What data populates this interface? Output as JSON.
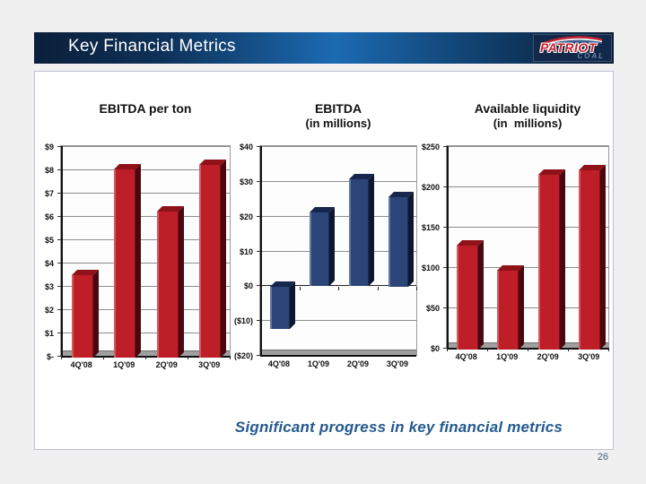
{
  "header": {
    "title": "Key Financial Metrics",
    "logo": {
      "patriot": "PATRIOT",
      "coal": "COAL"
    }
  },
  "tagline": "Significant progress in key financial metrics",
  "page_number": "26",
  "colors": {
    "header_navy": "#0B1F3A",
    "header_blue": "#1C6AB2",
    "red_bar": "#BE1E28",
    "blue_bar": "#2B4579",
    "tagline_blue": "#24598F"
  },
  "chart_data": [
    {
      "type": "bar",
      "title": "EBITDA per ton",
      "subtitle": "",
      "categories": [
        "4Q'08",
        "1Q'09",
        "2Q'09",
        "3Q'09"
      ],
      "values": [
        3.5,
        8.0,
        6.2,
        8.2
      ],
      "ylim": [
        0,
        9
      ],
      "ytick_labels": [
        "$9",
        "$8",
        "$7",
        "$6",
        "$5",
        "$4",
        "$3",
        "$2",
        "$1",
        "$-"
      ],
      "xlabel": "",
      "ylabel": "",
      "grid": true,
      "legend": false,
      "bar_colors": {
        "front": "#BE1E28",
        "top": "#8E1218",
        "side": "#4A080E"
      }
    },
    {
      "type": "bar",
      "title": "EBITDA",
      "subtitle": "(in millions)",
      "categories": [
        "4Q'08",
        "1Q'09",
        "2Q'09",
        "3Q'09"
      ],
      "values": [
        -12,
        21,
        30.5,
        25.5
      ],
      "ylim": [
        -20,
        40
      ],
      "ytick_labels": [
        "$40",
        "$30",
        "$20",
        "$10",
        "$0",
        "($10)",
        "($20)"
      ],
      "xlabel": "",
      "ylabel": "",
      "grid": true,
      "legend": false,
      "bar_colors": {
        "front": "#2B4579",
        "top": "#16264C",
        "side": "#0D1730"
      }
    },
    {
      "type": "bar",
      "title": "Available liquidity",
      "subtitle": "(in  millions)",
      "categories": [
        "4Q'08",
        "1Q'09",
        "2Q'09",
        "3Q'09"
      ],
      "values": [
        128,
        97,
        215,
        220
      ],
      "ylim": [
        0,
        250
      ],
      "ytick_labels": [
        "$250",
        "$200",
        "$150",
        "$100",
        "$50",
        "$0"
      ],
      "xlabel": "",
      "ylabel": "",
      "grid": true,
      "legend": false,
      "bar_colors": {
        "front": "#BE1E28",
        "top": "#8E1218",
        "side": "#4A080E"
      }
    }
  ]
}
